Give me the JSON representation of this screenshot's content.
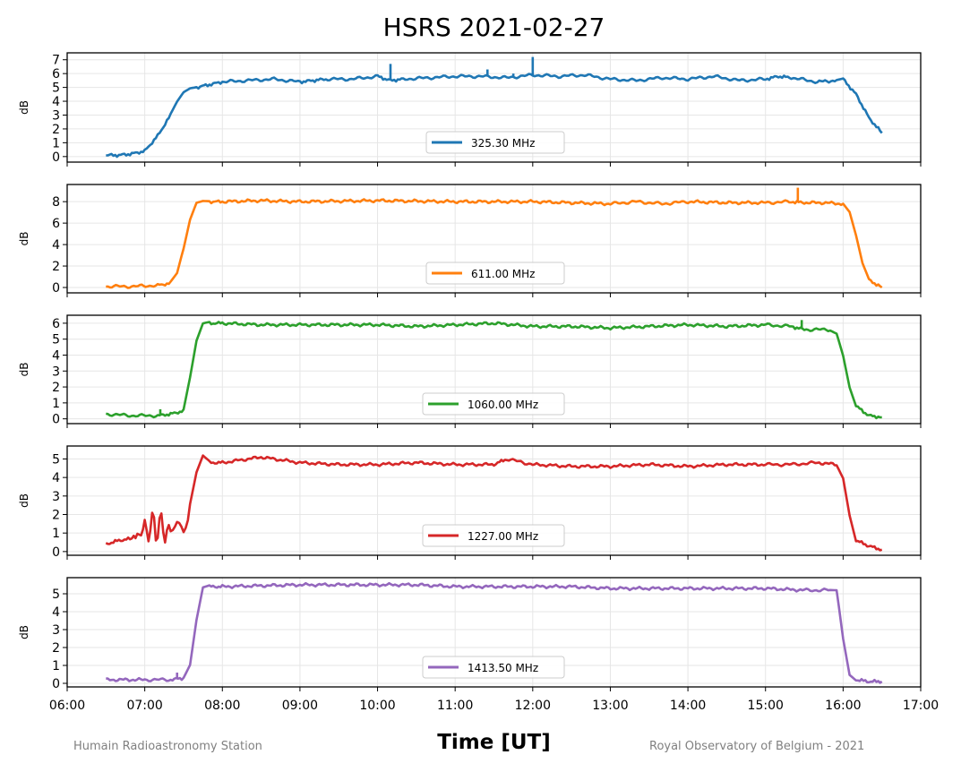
{
  "title": "HSRS 2021-02-27",
  "xlabel": "Time [UT]",
  "footer_left": "Humain Radioastronomy Station",
  "footer_right": "Royal Observatory of Belgium - 2021",
  "chart_data": [
    {
      "type": "line",
      "ylabel": "dB",
      "ylim": [
        -0.4,
        7.5
      ],
      "yticks": [
        0,
        1,
        2,
        3,
        4,
        5,
        6,
        7
      ],
      "xlim": [
        "06:00",
        "17:00"
      ],
      "xticks": [
        "06:00",
        "07:00",
        "08:00",
        "09:00",
        "10:00",
        "11:00",
        "12:00",
        "13:00",
        "14:00",
        "15:00",
        "16:00",
        "17:00"
      ],
      "grid": true,
      "legend": "bottom-center",
      "series": [
        {
          "name": "325.30 MHz",
          "color": "#1f77b4",
          "x": [
            "06:30",
            "06:40",
            "06:50",
            "07:00",
            "07:10",
            "07:20",
            "07:25",
            "07:30",
            "07:35",
            "07:40",
            "07:50",
            "08:00",
            "08:20",
            "08:40",
            "09:00",
            "09:10",
            "09:20",
            "09:40",
            "10:00",
            "10:10",
            "10:20",
            "10:40",
            "11:00",
            "11:20",
            "11:40",
            "12:00",
            "12:20",
            "12:40",
            "13:00",
            "13:20",
            "13:40",
            "14:00",
            "14:20",
            "14:40",
            "15:00",
            "15:10",
            "15:20",
            "15:40",
            "15:55",
            "16:00",
            "16:10",
            "16:20",
            "16:30"
          ],
          "values": [
            0.1,
            0.1,
            0.2,
            0.4,
            1.5,
            3.0,
            3.9,
            4.6,
            4.9,
            5.0,
            5.2,
            5.4,
            5.5,
            5.6,
            5.4,
            5.5,
            5.6,
            5.6,
            5.8,
            5.5,
            5.6,
            5.7,
            5.8,
            5.8,
            5.7,
            5.9,
            5.8,
            5.9,
            5.6,
            5.5,
            5.7,
            5.6,
            5.8,
            5.5,
            5.6,
            5.8,
            5.7,
            5.4,
            5.5,
            5.6,
            4.5,
            2.8,
            1.7
          ],
          "spikes": [
            {
              "x": "10:10",
              "y": 6.7
            },
            {
              "x": "11:25",
              "y": 6.3
            },
            {
              "x": "12:00",
              "y": 7.2
            },
            {
              "x": "11:45",
              "y": 6.0
            }
          ]
        }
      ]
    },
    {
      "type": "line",
      "ylabel": "dB",
      "ylim": [
        -0.5,
        9.6
      ],
      "yticks": [
        0,
        2,
        4,
        6,
        8
      ],
      "xlim": [
        "06:00",
        "17:00"
      ],
      "grid": true,
      "legend": "bottom-center",
      "series": [
        {
          "name": "611.00 MHz",
          "color": "#ff7f0e",
          "x": [
            "06:30",
            "06:50",
            "07:10",
            "07:20",
            "07:25",
            "07:30",
            "07:35",
            "07:40",
            "07:45",
            "07:50",
            "08:00",
            "08:30",
            "09:00",
            "10:00",
            "11:00",
            "12:00",
            "12:30",
            "13:00",
            "13:20",
            "13:40",
            "14:00",
            "14:30",
            "15:00",
            "15:20",
            "15:30",
            "15:45",
            "16:00",
            "16:05",
            "16:10",
            "16:15",
            "16:20",
            "16:30"
          ],
          "values": [
            0.1,
            0.1,
            0.2,
            0.4,
            1.2,
            3.5,
            6.2,
            7.8,
            8.0,
            8.0,
            8.0,
            8.1,
            8.0,
            8.1,
            8.0,
            8.0,
            7.9,
            7.8,
            8.0,
            7.8,
            8.0,
            7.9,
            7.9,
            8.0,
            7.9,
            7.9,
            7.8,
            7.0,
            4.8,
            2.2,
            0.7,
            0.0
          ],
          "spikes": [
            {
              "x": "15:25",
              "y": 9.3
            }
          ]
        }
      ]
    },
    {
      "type": "line",
      "ylabel": "dB",
      "ylim": [
        -0.3,
        6.5
      ],
      "yticks": [
        0,
        1,
        2,
        3,
        4,
        5,
        6
      ],
      "xlim": [
        "06:00",
        "17:00"
      ],
      "grid": true,
      "legend": "bottom-center",
      "series": [
        {
          "name": "1060.00 MHz",
          "color": "#2ca02c",
          "x": [
            "06:30",
            "06:50",
            "07:10",
            "07:20",
            "07:30",
            "07:35",
            "07:40",
            "07:45",
            "07:50",
            "08:00",
            "08:30",
            "09:00",
            "10:00",
            "10:30",
            "11:00",
            "11:30",
            "12:00",
            "12:30",
            "13:00",
            "13:30",
            "14:00",
            "14:30",
            "15:00",
            "15:20",
            "15:30",
            "15:50",
            "15:55",
            "16:00",
            "16:05",
            "16:10",
            "16:20",
            "16:30"
          ],
          "values": [
            0.3,
            0.2,
            0.2,
            0.3,
            0.5,
            2.5,
            4.8,
            5.9,
            6.0,
            6.0,
            5.9,
            5.9,
            5.9,
            5.8,
            5.9,
            6.0,
            5.8,
            5.8,
            5.7,
            5.8,
            5.9,
            5.8,
            5.9,
            5.8,
            5.6,
            5.6,
            5.4,
            4.0,
            2.0,
            0.8,
            0.2,
            0.1
          ],
          "spikes": [
            {
              "x": "07:12",
              "y": 0.6
            },
            {
              "x": "15:28",
              "y": 6.2
            }
          ]
        }
      ]
    },
    {
      "type": "line",
      "ylabel": "dB",
      "ylim": [
        -0.2,
        5.7
      ],
      "yticks": [
        0,
        1,
        2,
        3,
        4,
        5
      ],
      "xlim": [
        "06:00",
        "17:00"
      ],
      "grid": true,
      "legend": "bottom-center",
      "series": [
        {
          "name": "1227.00 MHz",
          "color": "#d62728",
          "x": [
            "06:30",
            "06:40",
            "06:50",
            "07:00",
            "07:10",
            "07:20",
            "07:25",
            "07:30",
            "07:35",
            "07:40",
            "07:45",
            "07:50",
            "08:00",
            "08:30",
            "09:00",
            "09:30",
            "10:00",
            "10:30",
            "11:00",
            "11:30",
            "11:40",
            "12:00",
            "12:30",
            "13:00",
            "13:30",
            "14:00",
            "14:30",
            "15:00",
            "15:20",
            "15:40",
            "15:55",
            "16:00",
            "16:05",
            "16:10",
            "16:20",
            "16:30"
          ],
          "values": [
            0.4,
            0.6,
            0.7,
            1.2,
            1.4,
            1.0,
            1.5,
            1.2,
            2.5,
            4.2,
            5.1,
            4.8,
            4.8,
            5.1,
            4.8,
            4.7,
            4.7,
            4.8,
            4.7,
            4.7,
            5.0,
            4.7,
            4.6,
            4.6,
            4.7,
            4.6,
            4.7,
            4.7,
            4.7,
            4.8,
            4.7,
            4.0,
            2.0,
            0.6,
            0.3,
            0.1
          ],
          "spikes": []
        }
      ]
    },
    {
      "type": "line",
      "ylabel": "dB",
      "ylim": [
        -0.2,
        5.9
      ],
      "yticks": [
        0,
        1,
        2,
        3,
        4,
        5
      ],
      "xlim": [
        "06:00",
        "17:00"
      ],
      "grid": true,
      "legend": "bottom-center",
      "series": [
        {
          "name": "1413.50 MHz",
          "color": "#9467bd",
          "x": [
            "06:30",
            "07:00",
            "07:20",
            "07:30",
            "07:35",
            "07:40",
            "07:45",
            "07:50",
            "08:00",
            "09:00",
            "10:00",
            "10:30",
            "11:00",
            "12:00",
            "12:30",
            "13:00",
            "13:30",
            "14:00",
            "14:30",
            "15:00",
            "15:30",
            "15:50",
            "15:55",
            "16:00",
            "16:05",
            "16:10",
            "16:20",
            "16:30"
          ],
          "values": [
            0.2,
            0.2,
            0.2,
            0.3,
            1.0,
            3.5,
            5.3,
            5.4,
            5.4,
            5.5,
            5.5,
            5.5,
            5.4,
            5.4,
            5.4,
            5.3,
            5.3,
            5.3,
            5.3,
            5.3,
            5.2,
            5.2,
            5.2,
            2.5,
            0.5,
            0.2,
            0.1,
            0.1
          ],
          "spikes": [
            {
              "x": "07:25",
              "y": 0.6
            }
          ]
        }
      ]
    }
  ]
}
